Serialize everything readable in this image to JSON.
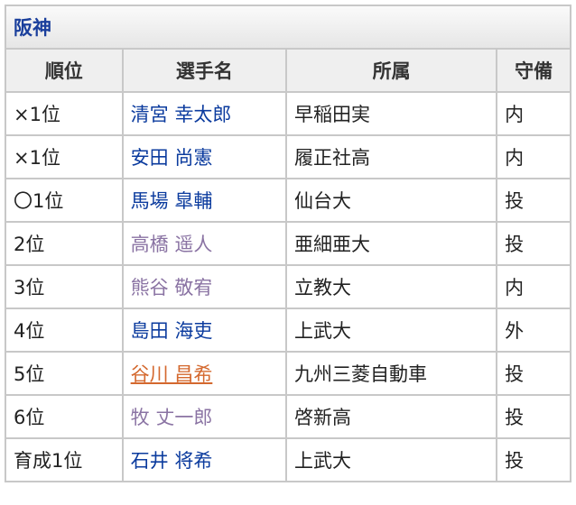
{
  "title": "阪神",
  "headers": [
    "順位",
    "選手名",
    "所属",
    "守備"
  ],
  "colors": {
    "link": "#0b3b9e",
    "visited": "#8a73a3",
    "hover": "#d4682e"
  },
  "rows": [
    {
      "rank": "×1位",
      "name": "清宮 幸太郎",
      "team": "早稲田実",
      "pos": "内",
      "state": "link"
    },
    {
      "rank": "×1位",
      "name": "安田 尚憲",
      "team": "履正社高",
      "pos": "内",
      "state": "link"
    },
    {
      "rank": "〇1位",
      "name": "馬場 皐輔",
      "team": "仙台大",
      "pos": "投",
      "state": "link"
    },
    {
      "rank": "2位",
      "name": "高橋 遥人",
      "team": "亜細亜大",
      "pos": "投",
      "state": "visited"
    },
    {
      "rank": "3位",
      "name": "熊谷 敬宥",
      "team": "立教大",
      "pos": "内",
      "state": "visited"
    },
    {
      "rank": "4位",
      "name": "島田 海吏",
      "team": "上武大",
      "pos": "外",
      "state": "link"
    },
    {
      "rank": "5位",
      "name": "谷川 昌希",
      "team": "九州三菱自動車",
      "pos": "投",
      "state": "hover"
    },
    {
      "rank": "6位",
      "name": "牧 丈一郎",
      "team": "啓新高",
      "pos": "投",
      "state": "visited"
    },
    {
      "rank": "育成1位",
      "name": "石井 将希",
      "team": "上武大",
      "pos": "投",
      "state": "link"
    }
  ]
}
